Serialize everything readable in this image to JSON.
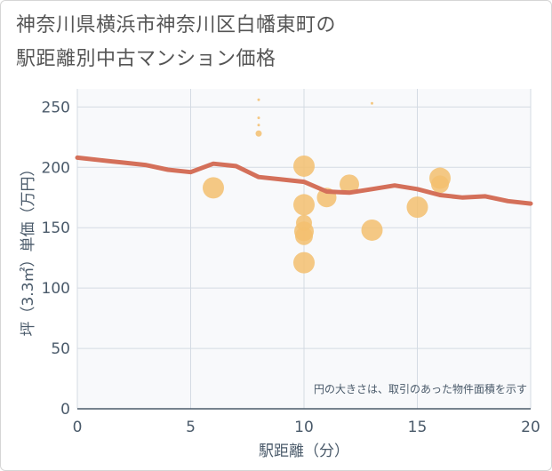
{
  "header": {
    "title_line1": "神奈川県横浜市神奈川区白幡東町の",
    "title_line2": "駅距離別中古マンション価格"
  },
  "colors": {
    "line": "#d4705a",
    "bubble": "#f3bf6e",
    "plot_bg": "#f8f9fb",
    "grid": "#d4dbe3",
    "axis": "#4a5a6a"
  },
  "chart_data": {
    "type": "scatter",
    "title": "神奈川県横浜市神奈川区白幡東町の駅距離別中古マンション価格",
    "xlabel": "駅距離（分）",
    "ylabel": "坪（3.3㎡）単価（万円）",
    "xlim": [
      0,
      20
    ],
    "ylim": [
      0,
      265
    ],
    "x_ticks": [
      "0",
      "5",
      "10",
      "15",
      "20"
    ],
    "y_ticks": [
      "0",
      "50",
      "100",
      "150",
      "200",
      "250"
    ],
    "grid": true,
    "note": "円の大きさは、取引のあった物件面積を示す",
    "line_series": {
      "x": [
        0,
        1,
        2,
        3,
        4,
        5,
        6,
        7,
        8,
        9,
        10,
        11,
        12,
        13,
        14,
        15,
        16,
        17,
        18,
        19,
        20
      ],
      "y": [
        208,
        206,
        204,
        202,
        198,
        196,
        203,
        201,
        192,
        190,
        188,
        180,
        179,
        182,
        185,
        182,
        177,
        175,
        176,
        172,
        170
      ]
    },
    "bubbles": [
      {
        "x": 6,
        "y": 183,
        "size": 12
      },
      {
        "x": 8,
        "y": 256,
        "size": 1.5
      },
      {
        "x": 8,
        "y": 241,
        "size": 1.5
      },
      {
        "x": 8,
        "y": 235,
        "size": 1.5
      },
      {
        "x": 8,
        "y": 228,
        "size": 3.5
      },
      {
        "x": 10,
        "y": 201,
        "size": 12
      },
      {
        "x": 10,
        "y": 169,
        "size": 12
      },
      {
        "x": 10,
        "y": 154,
        "size": 9
      },
      {
        "x": 10,
        "y": 147,
        "size": 11
      },
      {
        "x": 10,
        "y": 143,
        "size": 10
      },
      {
        "x": 10,
        "y": 121,
        "size": 12
      },
      {
        "x": 11,
        "y": 175,
        "size": 11
      },
      {
        "x": 12,
        "y": 186,
        "size": 11
      },
      {
        "x": 13,
        "y": 253,
        "size": 1.5
      },
      {
        "x": 13,
        "y": 148,
        "size": 12
      },
      {
        "x": 15,
        "y": 167,
        "size": 12
      },
      {
        "x": 16,
        "y": 191,
        "size": 12
      },
      {
        "x": 16,
        "y": 186,
        "size": 10
      }
    ]
  }
}
